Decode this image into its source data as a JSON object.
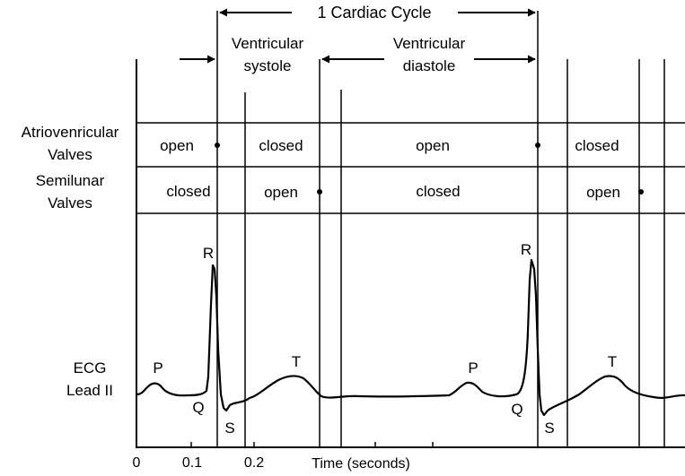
{
  "cycle": {
    "label": "1 Cardiac Cycle"
  },
  "phases": {
    "systole": [
      "Ventricular",
      "systole"
    ],
    "diastole": [
      "Ventricular",
      "diastole"
    ]
  },
  "rows": {
    "av": {
      "label": [
        "Atriovenricular",
        "Valves"
      ],
      "states": [
        "open",
        "closed",
        "open",
        "closed"
      ]
    },
    "sl": {
      "label": [
        "Semilunar",
        "Valves"
      ],
      "states": [
        "closed",
        "open",
        "closed",
        "open"
      ]
    }
  },
  "ecg": {
    "label": [
      "ECG",
      "Lead II"
    ],
    "waves1": {
      "P": "P",
      "Q": "Q",
      "R": "R",
      "S": "S",
      "T": "T"
    },
    "waves2": {
      "P": "P",
      "Q": "Q",
      "R": "R",
      "S": "S",
      "T": "T"
    }
  },
  "axis": {
    "ticks": [
      "0",
      "0.1",
      "0.2"
    ],
    "title": "Time (seconds)"
  }
}
